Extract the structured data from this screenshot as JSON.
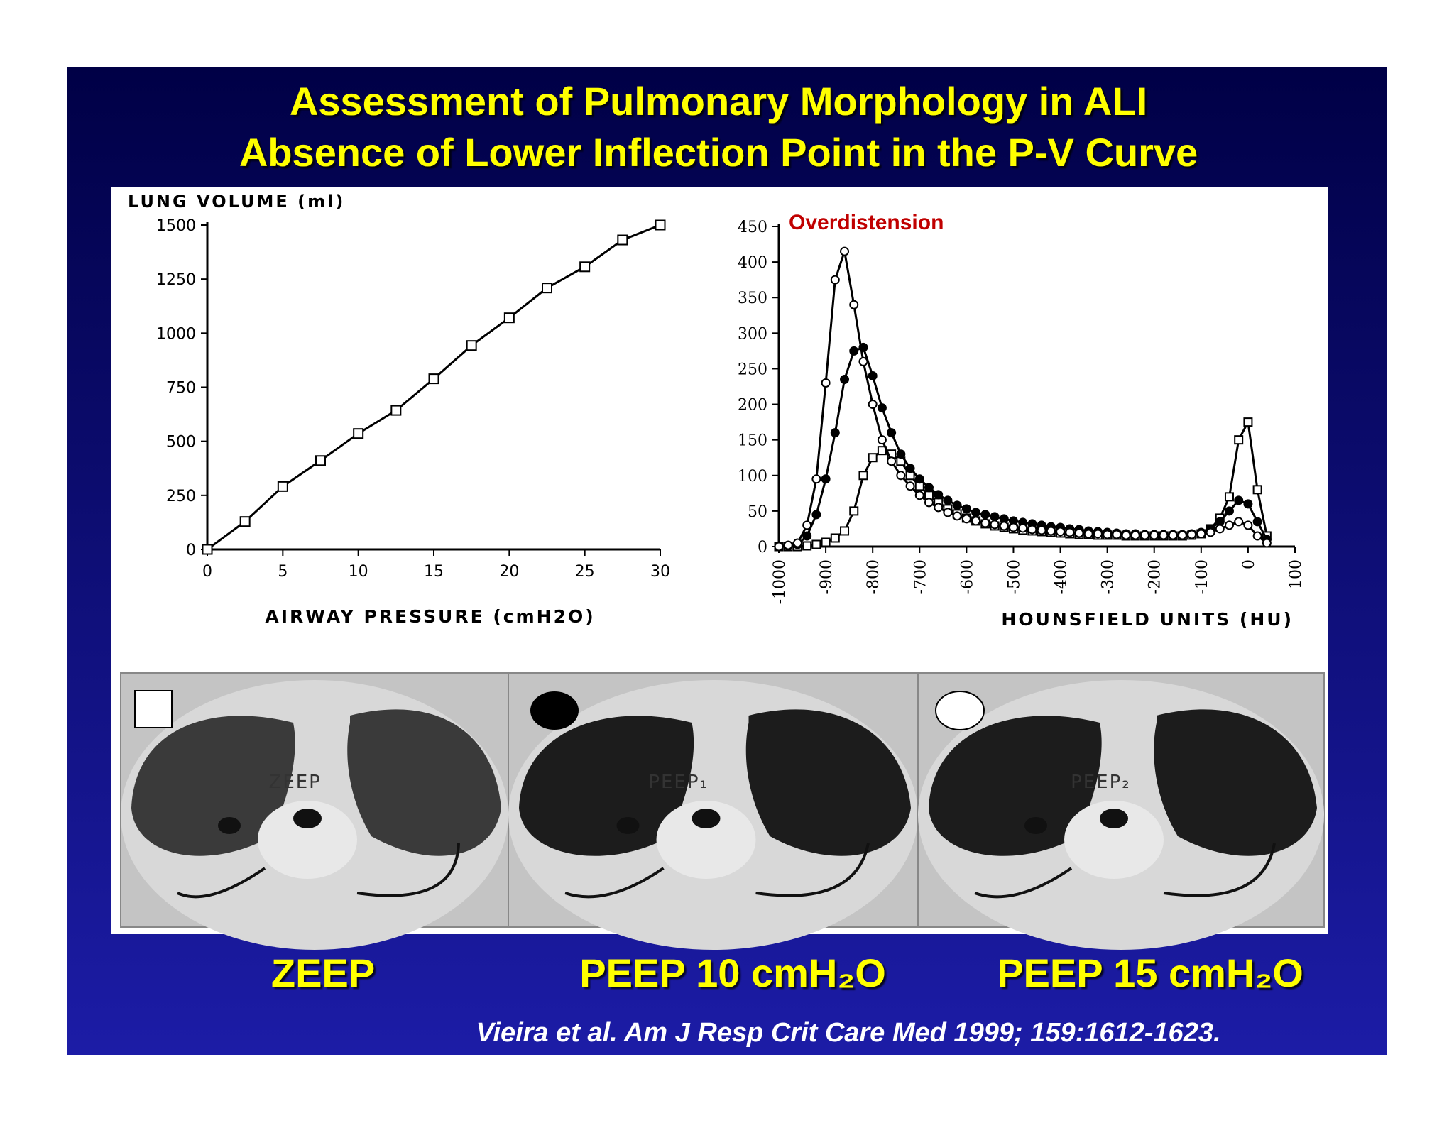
{
  "title": [
    "Assessment of Pulmonary Morphology in ALI",
    "Absence of Lower Inflection Point in the P-V Curve"
  ],
  "chart_data": [
    {
      "type": "line",
      "ylabel": "LUNG VOLUME (ml)",
      "xlabel": "AIRWAY PRESSURE (cmH2O)",
      "x": [
        0,
        2.5,
        5,
        7.5,
        10,
        12.5,
        15,
        17.5,
        20,
        22.5,
        25,
        27.5,
        30
      ],
      "series": [
        {
          "color": "#000000",
          "marker": "square",
          "values": [
            0,
            129,
            291,
            411,
            536,
            643,
            789,
            943,
            1071,
            1209,
            1307,
            1431,
            1500
          ]
        }
      ],
      "xlim": [
        0,
        30
      ],
      "ylim": [
        0,
        1500
      ],
      "xticks": [
        0,
        5,
        10,
        15,
        20,
        25,
        30
      ],
      "yticks": [
        0,
        250,
        500,
        750,
        1000,
        1250,
        1500
      ]
    },
    {
      "type": "line",
      "xlabel": "HOUNSFIELD UNITS (HU)",
      "annotation": {
        "text": "Overdistension",
        "color": "#c00000"
      },
      "x": [
        -1000,
        -980,
        -960,
        -940,
        -920,
        -900,
        -880,
        -860,
        -840,
        -820,
        -800,
        -780,
        -760,
        -740,
        -720,
        -700,
        -680,
        -660,
        -640,
        -620,
        -600,
        -580,
        -560,
        -540,
        -520,
        -500,
        -480,
        -460,
        -440,
        -420,
        -400,
        -380,
        -360,
        -340,
        -320,
        -300,
        -280,
        -260,
        -240,
        -220,
        -200,
        -180,
        -160,
        -140,
        -120,
        -100,
        -80,
        -60,
        -40,
        -20,
        0,
        20,
        40
      ],
      "series": [
        {
          "color": "#000000",
          "marker": "square",
          "values": [
            0,
            0,
            0,
            1,
            3,
            6,
            12,
            22,
            50,
            100,
            125,
            135,
            130,
            120,
            100,
            85,
            72,
            62,
            53,
            46,
            40,
            36,
            32,
            29,
            27,
            25,
            23,
            22,
            21,
            20,
            19,
            18,
            17,
            17,
            16,
            16,
            16,
            15,
            15,
            15,
            15,
            15,
            15,
            15,
            16,
            18,
            25,
            40,
            70,
            150,
            175,
            80,
            15
          ]
        },
        {
          "color": "#000000",
          "marker": "circle",
          "values": [
            0,
            1,
            3,
            15,
            45,
            95,
            160,
            235,
            275,
            280,
            240,
            195,
            160,
            130,
            110,
            95,
            83,
            73,
            65,
            58,
            53,
            48,
            45,
            42,
            39,
            36,
            34,
            32,
            30,
            28,
            27,
            25,
            24,
            22,
            21,
            20,
            19,
            18,
            18,
            17,
            17,
            17,
            17,
            17,
            18,
            20,
            25,
            35,
            50,
            65,
            60,
            35,
            10
          ]
        },
        {
          "color": "#000000",
          "marker": "open-circle",
          "values": [
            0,
            2,
            5,
            30,
            95,
            230,
            375,
            415,
            340,
            260,
            200,
            150,
            120,
            100,
            85,
            72,
            62,
            55,
            48,
            43,
            39,
            36,
            33,
            31,
            29,
            27,
            26,
            24,
            23,
            22,
            21,
            20,
            19,
            18,
            18,
            17,
            17,
            16,
            16,
            16,
            16,
            16,
            16,
            16,
            17,
            18,
            20,
            25,
            30,
            35,
            30,
            15,
            5
          ]
        }
      ],
      "xlim": [
        -1000,
        100
      ],
      "ylim": [
        0,
        450
      ],
      "xticks": [
        -1000,
        -900,
        -800,
        -700,
        -600,
        -500,
        -400,
        -300,
        -200,
        -100,
        0,
        100
      ],
      "yticks": [
        0,
        50,
        100,
        150,
        200,
        250,
        300,
        350,
        400,
        450
      ]
    }
  ],
  "ct_images": {
    "labels": [
      "ZEEP",
      "PEEP₁",
      "PEEP₂"
    ]
  },
  "captions": [
    "ZEEP",
    "PEEP 10 cmH₂O",
    "PEEP 15 cmH₂O"
  ],
  "citation": "Vieira et al. Am J Resp Crit Care Med 1999; 159:1612-1623."
}
